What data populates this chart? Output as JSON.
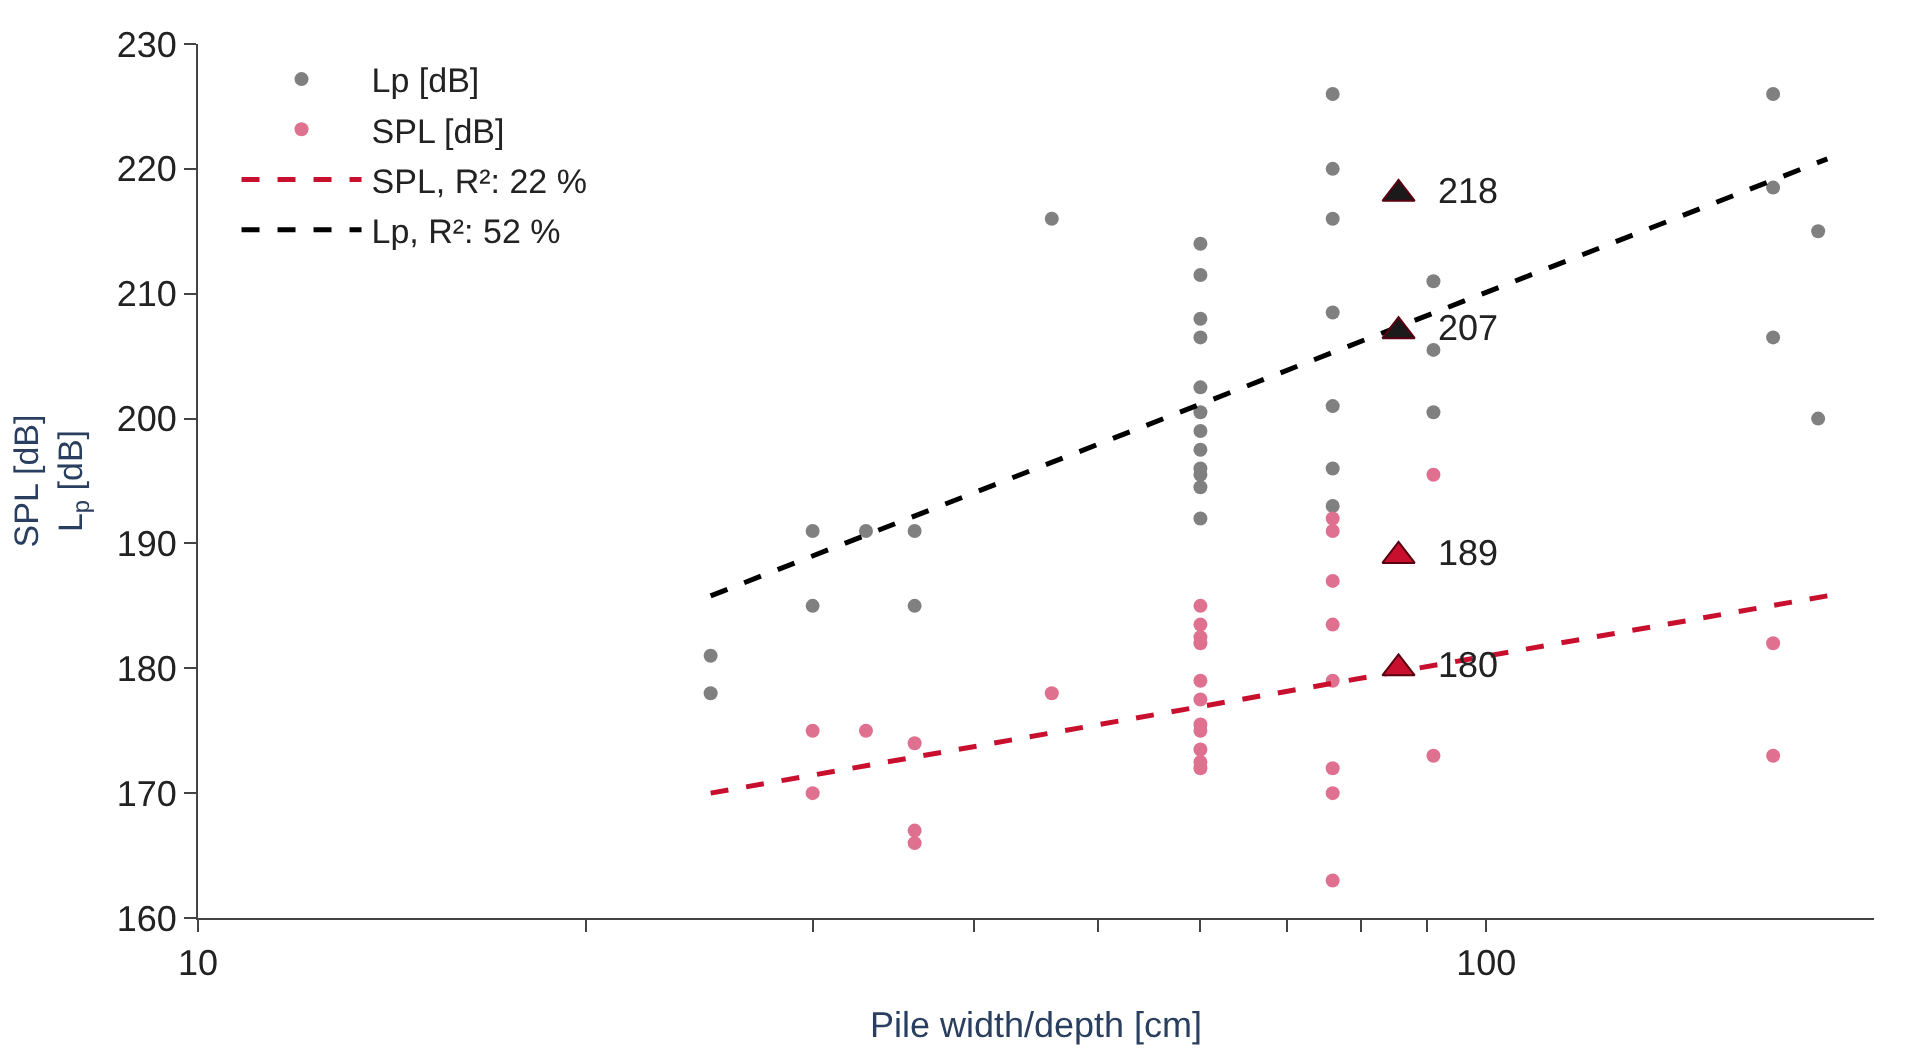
{
  "chart_data": {
    "type": "scatter",
    "xlabel": "Pile width/depth [cm]",
    "ylabel": "SPL [dB]\nL$_{p}$ [dB]",
    "log": "x",
    "grid": false,
    "legend": "top left",
    "xlim": [
      10,
      200
    ],
    "xticks": [
      10,
      {
        "value": 20,
        "label": null
      },
      {
        "value": 30,
        "label": null
      },
      {
        "value": 40,
        "label": null
      },
      {
        "value": 50,
        "label": null
      },
      {
        "value": 60,
        "label": null
      },
      {
        "value": 70,
        "label": null
      },
      {
        "value": 80,
        "label": null
      },
      {
        "value": 90,
        "label": null
      },
      100
    ],
    "ylim": [
      160,
      230
    ],
    "yticks": [
      160,
      170,
      180,
      190,
      200,
      210,
      220,
      230
    ],
    "series": [
      {
        "name": "Lp [dB]",
        "marker": "circle",
        "color": "#808080",
        "x": [
          25,
          25,
          30,
          30,
          33,
          36,
          36,
          46,
          60,
          60,
          60,
          60,
          60,
          60,
          60,
          60,
          60,
          60,
          60,
          60,
          76,
          76,
          76,
          76,
          76,
          76,
          76,
          91,
          91,
          91,
          167,
          167,
          167,
          181,
          181
        ],
        "values": [
          181,
          178,
          191,
          185,
          191,
          191,
          185,
          216,
          214,
          211.5,
          208,
          206.5,
          202.5,
          200.5,
          199,
          197.5,
          196,
          195.5,
          194.5,
          192,
          226,
          220,
          216,
          208.5,
          201,
          196,
          193,
          211,
          205.5,
          200.5,
          226,
          218.5,
          206.5,
          215,
          200
        ]
      },
      {
        "name": "SPL [dB]",
        "marker": "circle",
        "color": "#e07090",
        "x": [
          30,
          30,
          33,
          36,
          36,
          36,
          46,
          60,
          60,
          60,
          60,
          60,
          60,
          60,
          60,
          60,
          60,
          60,
          76,
          76,
          76,
          76,
          76,
          76,
          76,
          76,
          91,
          91,
          167,
          167
        ],
        "values": [
          175,
          170,
          175,
          174,
          167,
          166,
          178,
          185,
          183.5,
          182.5,
          182,
          179,
          177.5,
          175.5,
          175,
          173.5,
          172.5,
          172,
          192,
          191,
          187,
          183.5,
          179,
          172,
          170,
          163,
          195.5,
          173,
          182,
          173
        ]
      },
      {
        "name": "SPL, R²: 22 %",
        "type": "line",
        "marker": "none",
        "line_style": "dashed",
        "color": "#c8102e",
        "x": [
          25,
          184
        ],
        "values": [
          170,
          185.8
        ]
      },
      {
        "name": "Lp, R²: 52 %",
        "type": "line",
        "marker": "none",
        "line_style": "dashed",
        "color": "#000000",
        "x": [
          25,
          184
        ],
        "values": [
          185.8,
          220.8
        ]
      },
      {
        "marker": "triangle",
        "color": "#1a1a1a",
        "x": [
          85.5,
          85.5
        ],
        "values": [
          218,
          207
        ],
        "value_labels": [
          "218",
          "207"
        ]
      },
      {
        "marker": "triangle",
        "color": "#c8102e",
        "x": [
          85.5,
          85.5
        ],
        "values": [
          189,
          180
        ],
        "value_labels": [
          "189",
          "180"
        ]
      }
    ]
  }
}
